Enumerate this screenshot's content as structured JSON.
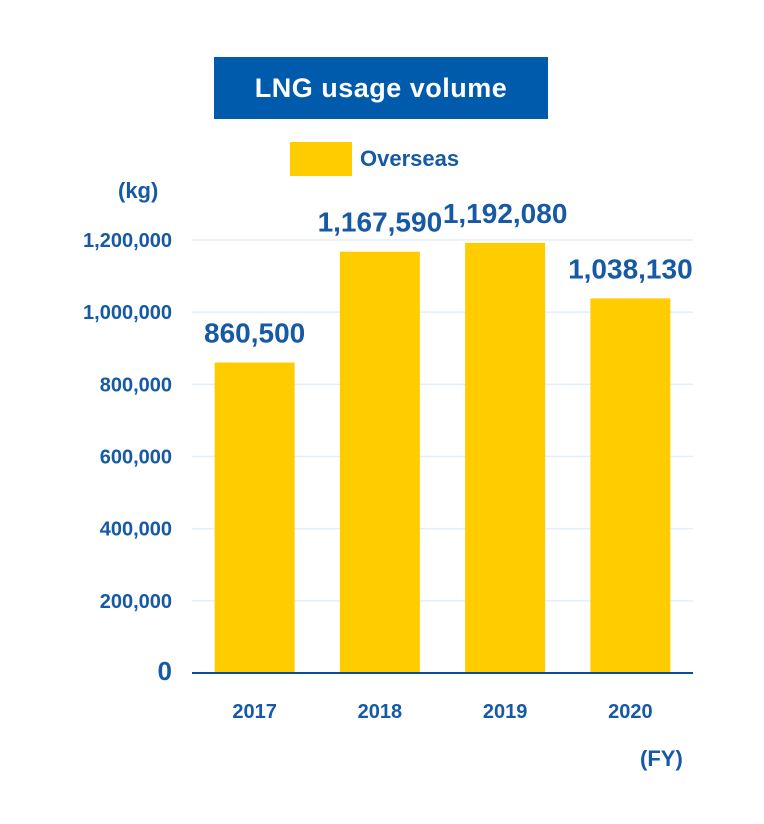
{
  "chart_data": {
    "type": "bar",
    "title": "LNG usage volume",
    "ylabel": "(kg)",
    "xlabel": "(FY)",
    "categories": [
      "2017",
      "2018",
      "2019",
      "2020"
    ],
    "series": [
      {
        "name": "Overseas",
        "values": [
          860500,
          1167590,
          1192080,
          1038130
        ],
        "value_labels": [
          "860,500",
          "1,167,590",
          "1,192,080",
          "1,038,130"
        ],
        "color": "#ffcc00"
      }
    ],
    "ylim": [
      0,
      1200000
    ],
    "yticks": [
      0,
      200000,
      400000,
      600000,
      800000,
      1000000,
      1200000
    ],
    "ytick_labels": [
      "0",
      "200,000",
      "400,000",
      "600,000",
      "800,000",
      "1,000,000",
      "1,200,000"
    ],
    "grid": true,
    "legend_position": "top-center"
  },
  "colors": {
    "title_bg": "#005bac",
    "text": "#1659a4",
    "axis": "#0a4d9c",
    "grid": "#e3eef8"
  }
}
